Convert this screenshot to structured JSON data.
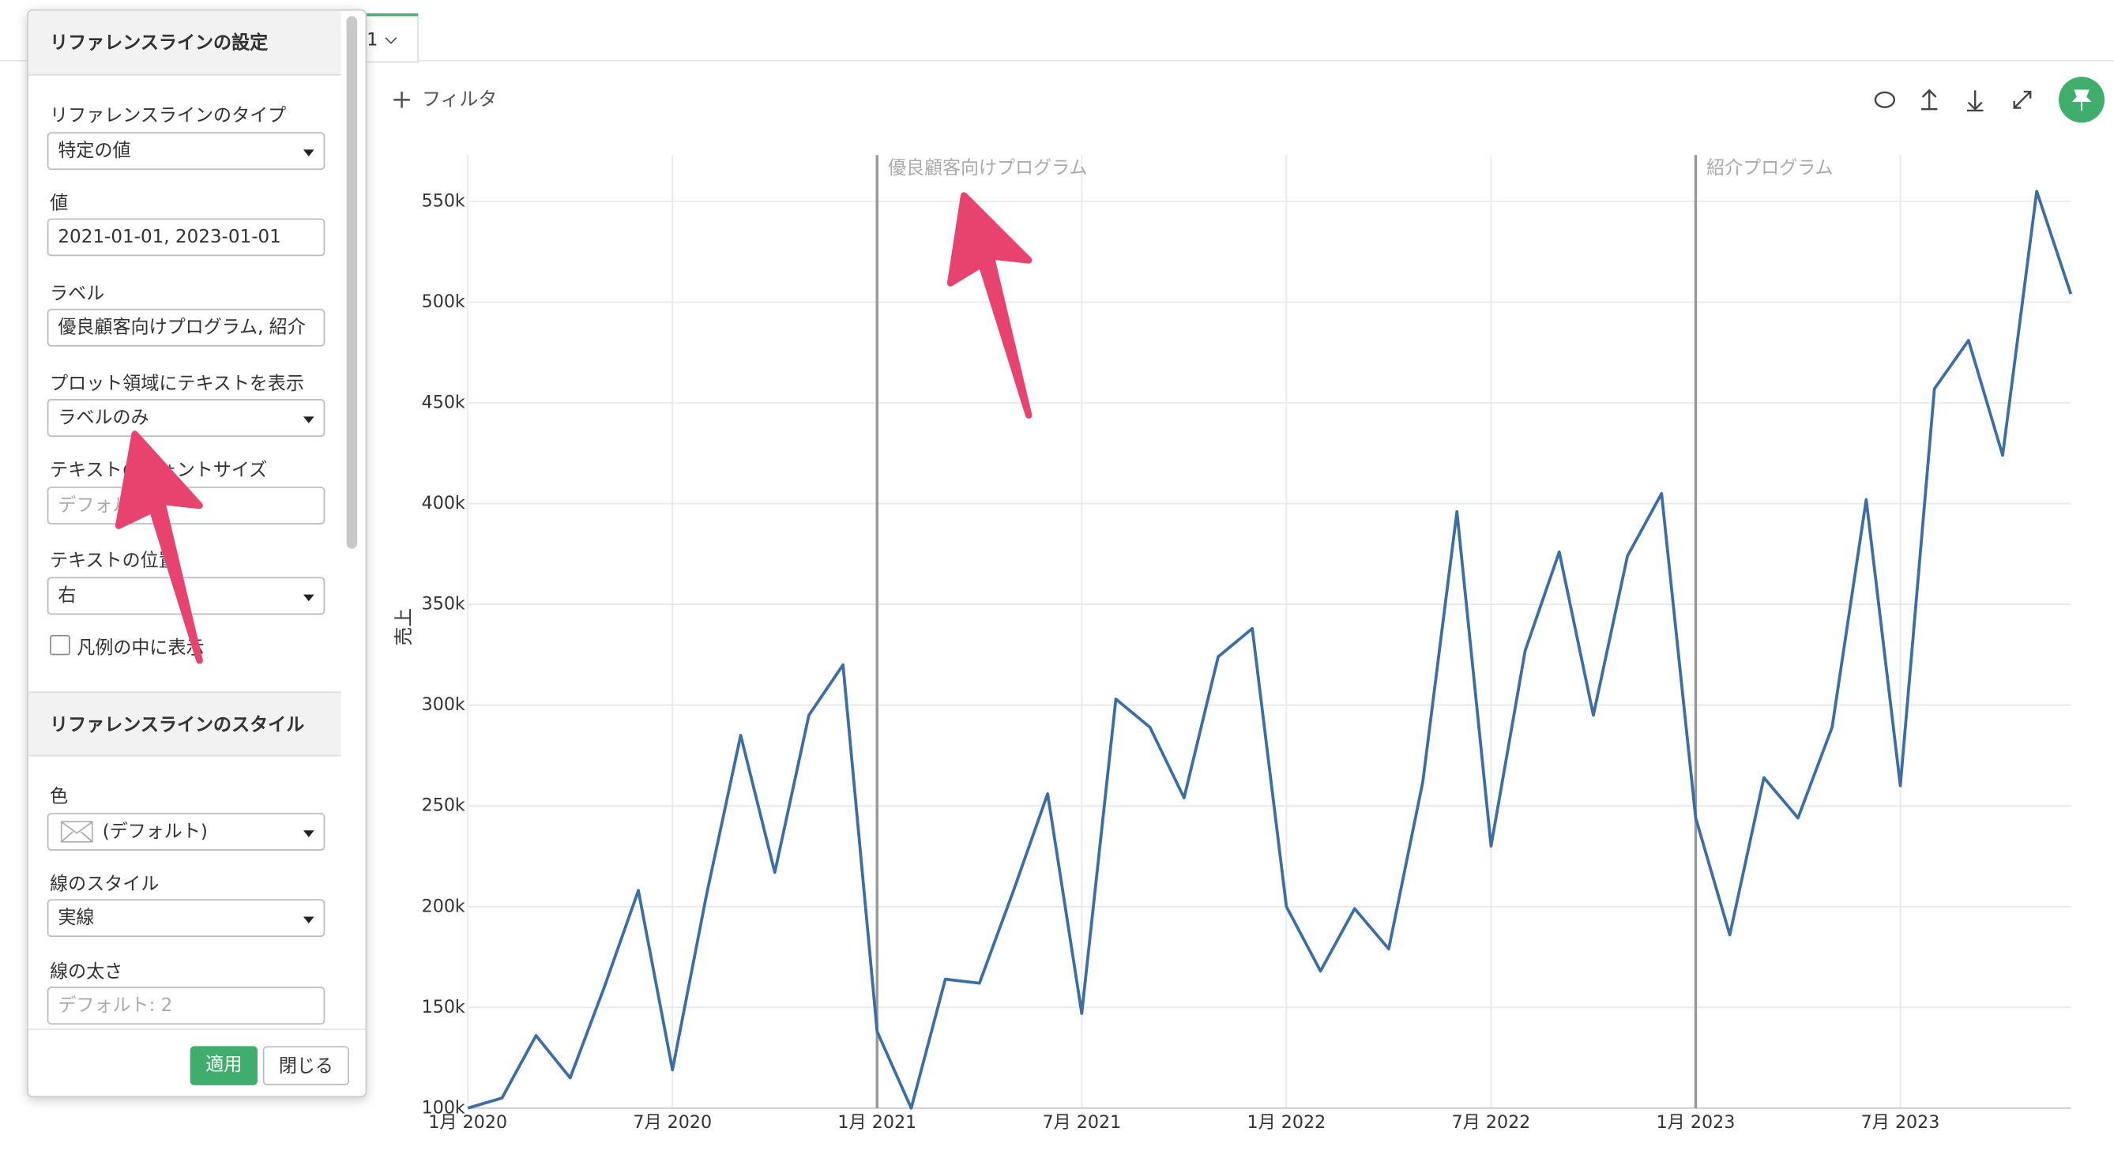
{
  "toolbar": {
    "tab": "1",
    "filter": "フィルタ"
  },
  "panel": {
    "title": "リファレンスラインの設定",
    "fields": [
      {
        "label": "リファレンスラインのタイプ",
        "value": "特定の値"
      },
      {
        "label": "値",
        "value": "2021-01-01, 2023-01-01"
      },
      {
        "label": "ラベル",
        "value": "優良顧客向けプログラム, 紹介"
      },
      {
        "label": "プロット領域にテキストを表示",
        "value": "ラベルのみ"
      },
      {
        "label": "テキストのフォントサイズ",
        "placeholder": "デフォルト"
      },
      {
        "label": "テキストの位置",
        "value": "右"
      }
    ],
    "checkbox": "凡例の中に表示",
    "style_title": "リファレンスラインのスタイル",
    "style_fields": [
      {
        "label": "色",
        "value": "(デフォルト)"
      },
      {
        "label": "線のスタイル",
        "value": "実線"
      },
      {
        "label": "線の太さ",
        "placeholder": "デフォルト: 2"
      }
    ],
    "apply": "適用",
    "close": "閉じる"
  },
  "chart_data": {
    "type": "line",
    "ylabel": "売上",
    "color": "#3a6ea5",
    "grid": true,
    "x": [
      "2020-01",
      "2020-02",
      "2020-03",
      "2020-04",
      "2020-05",
      "2020-06",
      "2020-07",
      "2020-08",
      "2020-09",
      "2020-10",
      "2020-11",
      "2020-12",
      "2021-01",
      "2021-02",
      "2021-03",
      "2021-04",
      "2021-05",
      "2021-06",
      "2021-07",
      "2021-08",
      "2021-09",
      "2021-10",
      "2021-11",
      "2021-12",
      "2022-01",
      "2022-02",
      "2022-03",
      "2022-04",
      "2022-05",
      "2022-06",
      "2022-07",
      "2022-08",
      "2022-09",
      "2022-10",
      "2022-11",
      "2022-12",
      "2023-01",
      "2023-02",
      "2023-03",
      "2023-04",
      "2023-05",
      "2023-06",
      "2023-07",
      "2023-08",
      "2023-09",
      "2023-10",
      "2023-11",
      "2023-12"
    ],
    "values": [
      100000,
      105000,
      136000,
      115000,
      160000,
      208000,
      119000,
      206000,
      285000,
      217000,
      295000,
      320000,
      138000,
      100000,
      164000,
      162000,
      208000,
      256000,
      147000,
      303000,
      289000,
      254000,
      324000,
      338000,
      200000,
      168000,
      199000,
      179000,
      262000,
      396000,
      230000,
      327000,
      376000,
      295000,
      374000,
      405000,
      244000,
      186000,
      264000,
      244000,
      289000,
      402000,
      260000,
      457000,
      481000,
      424000,
      555000,
      504000
    ],
    "xlim": [
      "2020-01",
      "2023-12"
    ],
    "xticks": [
      {
        "value": "2020-01",
        "label": "1月 2020"
      },
      {
        "value": "2020-07",
        "label": "7月 2020"
      },
      {
        "value": "2021-01",
        "label": "1月 2021"
      },
      {
        "value": "2021-07",
        "label": "7月 2021"
      },
      {
        "value": "2022-01",
        "label": "1月 2022"
      },
      {
        "value": "2022-07",
        "label": "7月 2022"
      },
      {
        "value": "2023-01",
        "label": "1月 2023"
      },
      {
        "value": "2023-07",
        "label": "7月 2023"
      }
    ],
    "ylim": [
      100000,
      573000
    ],
    "yticks": [
      {
        "value": 100000,
        "label": "100k"
      },
      {
        "value": 150000,
        "label": "150k"
      },
      {
        "value": 200000,
        "label": "200k"
      },
      {
        "value": 250000,
        "label": "250k"
      },
      {
        "value": 300000,
        "label": "300k"
      },
      {
        "value": 350000,
        "label": "350k"
      },
      {
        "value": 400000,
        "label": "400k"
      },
      {
        "value": 450000,
        "label": "450k"
      },
      {
        "value": 500000,
        "label": "500k"
      },
      {
        "value": 550000,
        "label": "550k"
      }
    ],
    "reference_lines": [
      {
        "x": "2021-01",
        "label": "優良顧客向けプログラム"
      },
      {
        "x": "2023-01",
        "label": "紹介プログラム"
      }
    ]
  }
}
